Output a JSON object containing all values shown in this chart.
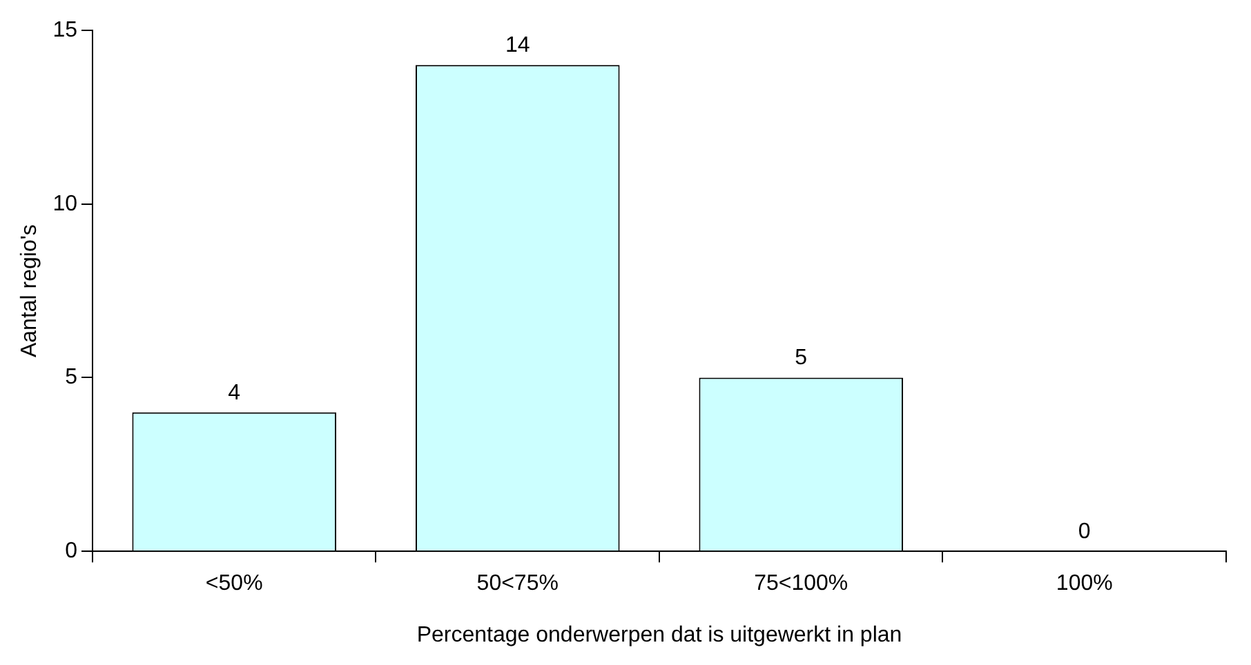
{
  "chart_data": {
    "type": "bar",
    "xlabel": "Percentage onderwerpen dat is uitgewerkt in plan",
    "ylabel": "Aantal regio's",
    "categories": [
      "<50%",
      "50<75%",
      "75<100%",
      "100%"
    ],
    "values": [
      4,
      14,
      5,
      0
    ],
    "color": "#ccffff",
    "ylim": [
      0,
      15
    ],
    "yticks": [
      0,
      5,
      10,
      15
    ],
    "grid": false,
    "legend": false,
    "data_labels": true
  }
}
